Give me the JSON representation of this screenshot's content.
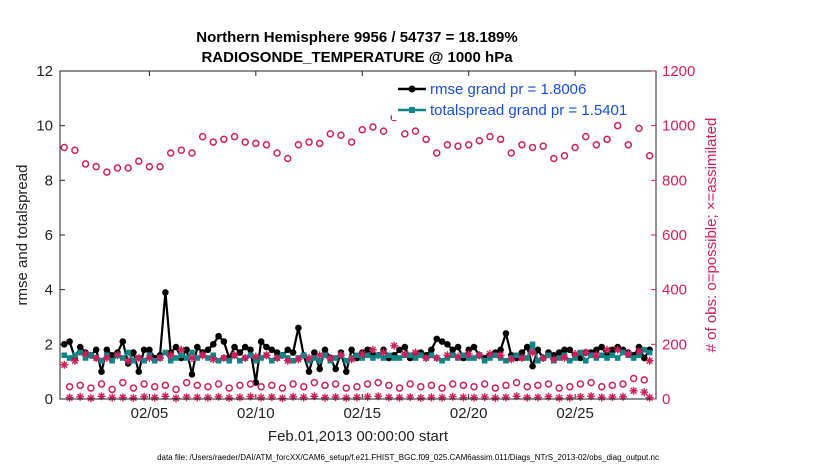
{
  "colors": {
    "rmse": "#000000",
    "spread": "#0f8585",
    "obs": "#cc1f5c",
    "legend_text": "#1a4dd6"
  },
  "chart_data": {
    "type": "line",
    "title": [
      "Northern Hemisphere 9956 / 54737 = 18.189%",
      "RADIOSONDE_TEMPERATURE @ 1000 hPa"
    ],
    "xlabel": "Feb.01,2013 00:00:00 start",
    "ylabel_left": "rmse and totalspread",
    "ylabel_right": "# of obs: o=possible; ×=assimilated",
    "xlim": [
      0.8,
      28.8
    ],
    "ylim_left": [
      0,
      12
    ],
    "ylim_right": [
      0,
      1200
    ],
    "x_ticks": [
      5,
      10,
      15,
      20,
      25
    ],
    "x_tick_labels": [
      "02/05",
      "02/10",
      "02/15",
      "02/20",
      "02/25"
    ],
    "y_ticks_left": [
      0,
      2,
      4,
      6,
      8,
      10,
      12
    ],
    "y_tick_labels_left": [
      "0",
      "2",
      "4",
      "6",
      "8",
      "10",
      "12"
    ],
    "y_ticks_right": [
      0,
      200,
      400,
      600,
      800,
      1000,
      1200
    ],
    "y_tick_labels_right": [
      "0",
      "200",
      "400",
      "600",
      "800",
      "1000",
      "1200"
    ],
    "legend": [
      "rmse grand pr = 1.8006",
      "totalspread grand pr = 1.5401"
    ],
    "footnote": "data file: /Users/raeder/DAI/ATM_forcXX/CAM6_setup/f.e21.FHIST_BGC.f09_025.CAM6assim.011/Diags_NTrS_2013-02/obs_diag_output.nc",
    "series": [
      {
        "name": "rmse",
        "axis": "left",
        "x": [
          1.0,
          1.25,
          1.5,
          1.75,
          2.0,
          2.25,
          2.5,
          2.75,
          3.0,
          3.25,
          3.5,
          3.75,
          4.0,
          4.25,
          4.5,
          4.75,
          5.0,
          5.25,
          5.5,
          5.75,
          6.0,
          6.25,
          6.5,
          6.75,
          7.0,
          7.25,
          7.5,
          7.75,
          8.0,
          8.25,
          8.5,
          8.75,
          9.0,
          9.25,
          9.5,
          9.75,
          10.0,
          10.25,
          10.5,
          10.75,
          11.0,
          11.25,
          11.5,
          11.75,
          12.0,
          12.25,
          12.5,
          12.75,
          13.0,
          13.25,
          13.5,
          13.75,
          14.0,
          14.25,
          14.5,
          14.75,
          15.0,
          15.25,
          15.5,
          15.75,
          16.0,
          16.25,
          16.5,
          16.75,
          17.0,
          17.25,
          17.5,
          17.75,
          18.0,
          18.25,
          18.5,
          18.75,
          19.0,
          19.25,
          19.5,
          19.75,
          20.0,
          20.25,
          20.5,
          20.75,
          21.0,
          21.25,
          21.5,
          21.75,
          22.0,
          22.25,
          22.5,
          22.75,
          23.0,
          23.25,
          23.5,
          23.75,
          24.0,
          24.25,
          24.5,
          24.75,
          25.0,
          25.25,
          25.5,
          25.75,
          26.0,
          26.25,
          26.5,
          26.75,
          27.0,
          27.25,
          27.5,
          27.75,
          28.0,
          28.25,
          28.5
        ],
        "y": [
          2.0,
          2.1,
          1.5,
          1.9,
          1.7,
          1.6,
          1.8,
          1.0,
          1.8,
          1.6,
          1.7,
          2.1,
          1.3,
          1.7,
          1.0,
          1.8,
          1.8,
          1.5,
          1.6,
          3.9,
          1.7,
          1.9,
          1.5,
          1.8,
          0.9,
          1.9,
          1.7,
          1.8,
          2.0,
          2.3,
          2.1,
          1.5,
          1.9,
          1.7,
          1.9,
          1.8,
          0.6,
          2.1,
          1.9,
          1.8,
          1.7,
          1.6,
          1.8,
          1.7,
          2.6,
          1.6,
          1.0,
          1.7,
          1.1,
          1.8,
          1.5,
          1.1,
          1.7,
          1.0,
          1.8,
          1.5,
          1.7,
          1.8,
          1.6,
          1.6,
          1.8,
          1.5,
          1.6,
          1.8,
          1.9,
          1.5,
          1.6,
          1.7,
          1.6,
          1.8,
          2.2,
          2.1,
          2.0,
          1.8,
          1.9,
          1.5,
          1.8,
          1.9,
          1.6,
          1.5,
          1.6,
          1.7,
          1.8,
          2.4,
          1.6,
          1.5,
          1.7,
          1.9,
          1.2,
          1.8,
          1.5,
          1.7,
          1.6,
          1.7,
          1.8,
          1.8,
          1.6,
          1.5,
          1.7,
          1.7,
          1.8,
          1.9,
          1.6,
          1.8,
          1.9,
          1.8,
          1.7,
          1.6,
          1.9,
          1.5,
          1.8
        ]
      },
      {
        "name": "totalspread",
        "axis": "left",
        "x": [
          1.0,
          1.25,
          1.5,
          1.75,
          2.0,
          2.25,
          2.5,
          2.75,
          3.0,
          3.25,
          3.5,
          3.75,
          4.0,
          4.25,
          4.5,
          4.75,
          5.0,
          5.25,
          5.5,
          5.75,
          6.0,
          6.25,
          6.5,
          6.75,
          7.0,
          7.25,
          7.5,
          7.75,
          8.0,
          8.25,
          8.5,
          8.75,
          9.0,
          9.25,
          9.5,
          9.75,
          10.0,
          10.25,
          10.5,
          10.75,
          11.0,
          11.25,
          11.5,
          11.75,
          12.0,
          12.25,
          12.5,
          12.75,
          13.0,
          13.25,
          13.5,
          13.75,
          14.0,
          14.25,
          14.5,
          14.75,
          15.0,
          15.25,
          15.5,
          15.75,
          16.0,
          16.25,
          16.5,
          16.75,
          17.0,
          17.25,
          17.5,
          17.75,
          18.0,
          18.25,
          18.5,
          18.75,
          19.0,
          19.25,
          19.5,
          19.75,
          20.0,
          20.25,
          20.5,
          20.75,
          21.0,
          21.25,
          21.5,
          21.75,
          22.0,
          22.25,
          22.5,
          22.75,
          23.0,
          23.25,
          23.5,
          23.75,
          24.0,
          24.25,
          24.5,
          24.75,
          25.0,
          25.25,
          25.5,
          25.75,
          26.0,
          26.25,
          26.5,
          26.75,
          27.0,
          27.25,
          27.5,
          27.75,
          28.0,
          28.25,
          28.5
        ],
        "y": [
          1.6,
          1.5,
          1.6,
          1.7,
          1.5,
          1.6,
          1.5,
          1.4,
          1.6,
          1.4,
          1.6,
          1.5,
          1.7,
          1.4,
          1.5,
          1.4,
          1.6,
          1.4,
          1.5,
          1.7,
          1.4,
          1.5,
          1.6,
          1.5,
          1.7,
          1.5,
          1.6,
          1.5,
          1.6,
          1.4,
          1.5,
          1.4,
          1.6,
          1.4,
          1.5,
          1.6,
          1.4,
          1.5,
          1.6,
          1.4,
          1.5,
          1.6,
          1.5,
          1.4,
          1.5,
          1.6,
          1.4,
          1.5,
          1.4,
          1.6,
          1.4,
          1.5,
          1.6,
          1.4,
          1.5,
          1.6,
          1.5,
          1.6,
          1.5,
          1.6,
          1.5,
          1.6,
          1.5,
          1.5,
          1.6,
          1.6,
          1.5,
          1.6,
          1.5,
          1.6,
          1.5,
          1.4,
          1.5,
          1.6,
          1.5,
          1.6,
          1.5,
          1.5,
          1.6,
          1.4,
          1.5,
          1.6,
          1.5,
          1.4,
          1.5,
          1.6,
          1.5,
          1.5,
          2.0,
          1.4,
          1.5,
          1.6,
          1.4,
          1.5,
          1.6,
          1.4,
          1.5,
          1.7,
          1.4,
          1.6,
          1.5,
          1.6,
          1.5,
          1.6,
          1.5,
          1.7,
          1.6,
          1.5,
          1.6,
          1.8,
          1.7
        ]
      },
      {
        "name": "possible obs (upper)",
        "axis": "right",
        "marker": "circle",
        "x": [
          1.0,
          1.5,
          2.0,
          2.5,
          3.0,
          3.5,
          4.0,
          4.5,
          5.0,
          5.5,
          6.0,
          6.5,
          7.0,
          7.5,
          8.0,
          8.5,
          9.0,
          9.5,
          10.0,
          10.5,
          11.0,
          11.5,
          12.0,
          12.5,
          13.0,
          13.5,
          14.0,
          14.5,
          15.0,
          15.5,
          16.0,
          16.5,
          17.0,
          17.5,
          18.0,
          18.5,
          19.0,
          19.5,
          20.0,
          20.5,
          21.0,
          21.5,
          22.0,
          22.5,
          23.0,
          23.5,
          24.0,
          24.5,
          25.0,
          25.5,
          26.0,
          26.5,
          27.0,
          27.5,
          28.0,
          28.5
        ],
        "y": [
          920,
          910,
          860,
          850,
          830,
          845,
          845,
          870,
          850,
          850,
          900,
          910,
          900,
          960,
          940,
          950,
          960,
          940,
          935,
          930,
          900,
          880,
          930,
          940,
          935,
          970,
          965,
          940,
          985,
          995,
          980,
          1030,
          970,
          980,
          950,
          900,
          930,
          925,
          930,
          945,
          960,
          950,
          900,
          930,
          920,
          925,
          880,
          890,
          920,
          960,
          930,
          950,
          1000,
          930,
          990,
          890
        ]
      },
      {
        "name": "possible obs (lower)",
        "axis": "right",
        "marker": "circle",
        "x": [
          1.25,
          1.75,
          2.25,
          2.75,
          3.25,
          3.75,
          4.25,
          4.75,
          5.25,
          5.75,
          6.25,
          6.75,
          7.25,
          7.75,
          8.25,
          8.75,
          9.25,
          9.75,
          10.25,
          10.75,
          11.25,
          11.75,
          12.25,
          12.75,
          13.25,
          13.75,
          14.25,
          14.75,
          15.25,
          15.75,
          16.25,
          16.75,
          17.25,
          17.75,
          18.25,
          18.75,
          19.25,
          19.75,
          20.25,
          20.75,
          21.25,
          21.75,
          22.25,
          22.75,
          23.25,
          23.75,
          24.25,
          24.75,
          25.25,
          25.75,
          26.25,
          26.75,
          27.25,
          27.75,
          28.25
        ],
        "y": [
          45,
          50,
          40,
          55,
          35,
          60,
          40,
          55,
          45,
          50,
          35,
          60,
          50,
          45,
          55,
          40,
          50,
          55,
          45,
          50,
          40,
          55,
          45,
          60,
          50,
          55,
          40,
          45,
          55,
          60,
          50,
          40,
          55,
          45,
          50,
          40,
          55,
          50,
          45,
          55,
          40,
          50,
          60,
          45,
          50,
          55,
          40,
          45,
          55,
          60,
          45,
          50,
          55,
          75,
          70
        ]
      },
      {
        "name": "assimilated obs (upper)",
        "axis": "right",
        "marker": "asterisk",
        "x": [
          1.0,
          1.5,
          2.0,
          2.5,
          3.0,
          3.5,
          4.0,
          4.5,
          5.0,
          5.5,
          6.0,
          6.5,
          7.0,
          7.5,
          8.0,
          8.5,
          9.0,
          9.5,
          10.0,
          10.5,
          11.0,
          11.5,
          12.0,
          12.5,
          13.0,
          13.5,
          14.0,
          14.5,
          15.0,
          15.5,
          16.0,
          16.5,
          17.0,
          17.5,
          18.0,
          18.5,
          19.0,
          19.5,
          20.0,
          20.5,
          21.0,
          21.5,
          22.0,
          22.5,
          23.0,
          23.5,
          24.0,
          24.5,
          25.0,
          25.5,
          26.0,
          26.5,
          27.0,
          27.5,
          28.0,
          28.5
        ],
        "y": [
          125,
          140,
          165,
          150,
          150,
          160,
          140,
          150,
          150,
          150,
          160,
          180,
          150,
          160,
          145,
          150,
          160,
          150,
          155,
          160,
          150,
          140,
          145,
          150,
          160,
          150,
          160,
          145,
          165,
          180,
          170,
          195,
          165,
          170,
          150,
          150,
          160,
          155,
          165,
          160,
          165,
          160,
          145,
          150,
          170,
          150,
          145,
          150,
          165,
          170,
          160,
          180,
          180,
          165,
          175,
          140
        ]
      },
      {
        "name": "assimilated obs (lower)",
        "axis": "right",
        "marker": "asterisk",
        "x": [
          1.25,
          1.75,
          2.25,
          2.75,
          3.25,
          3.75,
          4.25,
          4.75,
          5.25,
          5.75,
          6.25,
          6.75,
          7.25,
          7.75,
          8.25,
          8.75,
          9.25,
          9.75,
          10.25,
          10.75,
          11.25,
          11.75,
          12.25,
          12.75,
          13.25,
          13.75,
          14.25,
          14.75,
          15.25,
          15.75,
          16.25,
          16.75,
          17.25,
          17.75,
          18.25,
          18.75,
          19.25,
          19.75,
          20.25,
          20.75,
          21.25,
          21.75,
          22.25,
          22.75,
          23.25,
          23.75,
          24.25,
          24.75,
          25.25,
          25.75,
          26.25,
          26.75,
          27.25,
          27.75,
          28.25,
          28.5
        ],
        "y": [
          5,
          8,
          3,
          10,
          5,
          6,
          4,
          8,
          5,
          10,
          3,
          7,
          6,
          5,
          8,
          4,
          6,
          9,
          5,
          7,
          3,
          8,
          6,
          10,
          5,
          7,
          4,
          6,
          8,
          10,
          6,
          5,
          7,
          4,
          6,
          5,
          8,
          6,
          5,
          7,
          4,
          6,
          10,
          5,
          6,
          8,
          4,
          5,
          8,
          10,
          6,
          7,
          8,
          30,
          25,
          5
        ]
      }
    ]
  }
}
